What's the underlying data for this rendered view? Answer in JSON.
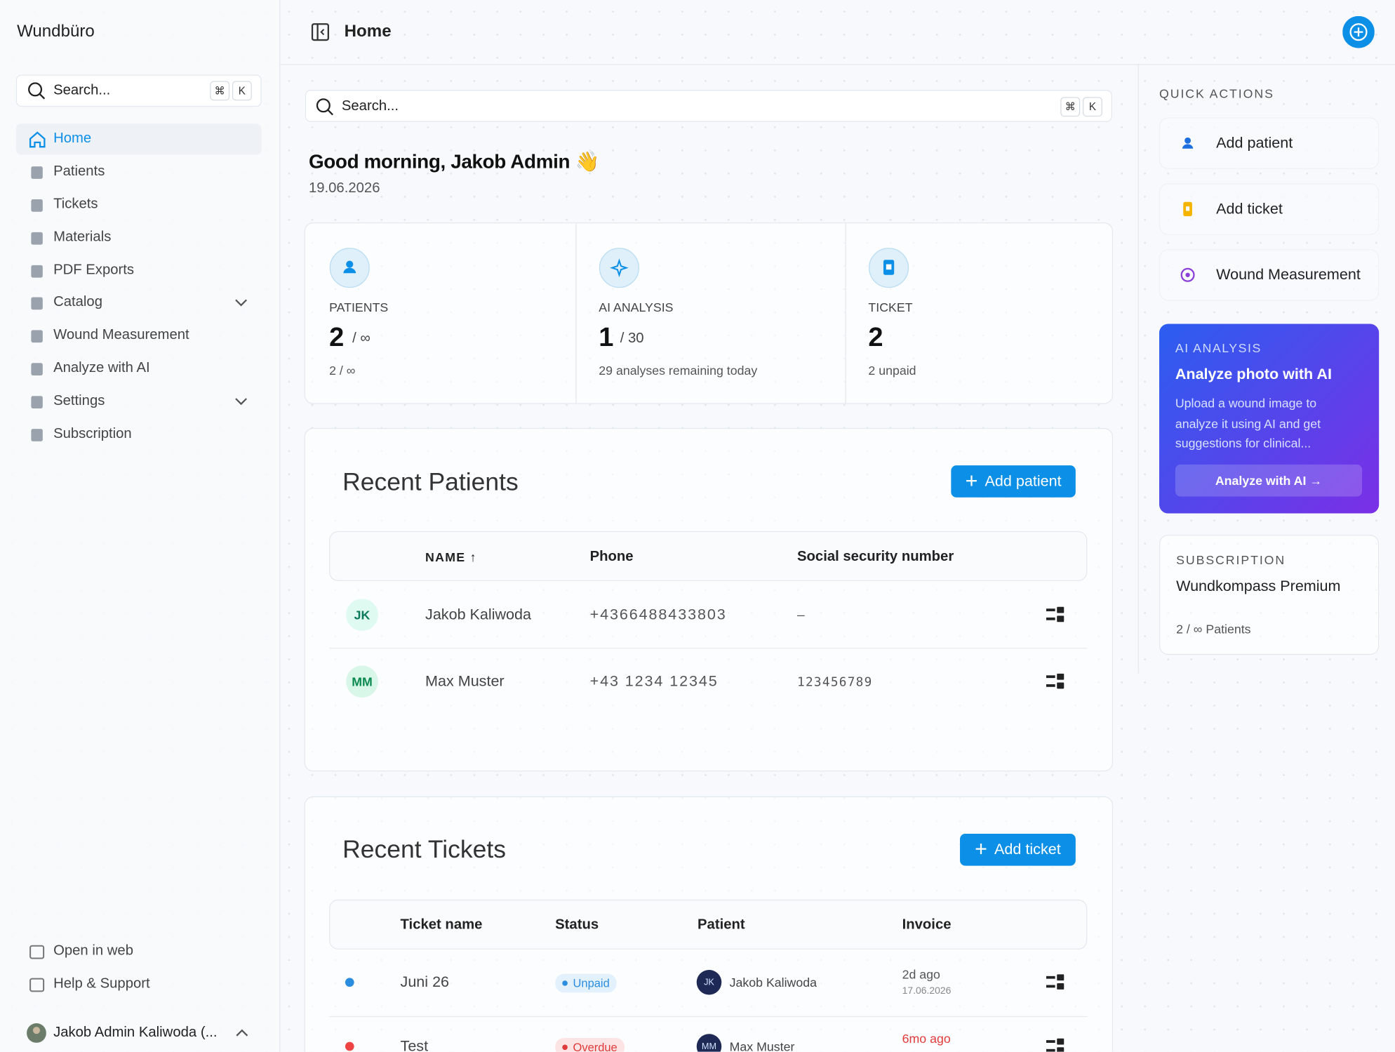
{
  "sidebar": {
    "brand": "Wundbüro",
    "search": "Search...",
    "shortcut": [
      "⌘",
      "K"
    ],
    "nav": [
      "Home",
      "Patients",
      "Tickets",
      "Materials",
      "PDF Exports",
      "Catalog",
      "Wound Measurement",
      "Analyze with AI",
      "Settings",
      "Subscription"
    ],
    "footer_links": [
      "Open in web",
      "Help & Support"
    ],
    "user": "Jakob Admin Kaliwoda (..."
  },
  "header": {
    "title": "Home"
  },
  "main": {
    "search": "Search...",
    "shortcut": [
      "⌘",
      "K"
    ],
    "greeting": "Good morning, Jakob Admin 👋",
    "date": "19.06.2026",
    "stats": [
      {
        "label": "PATIENTS",
        "value": "2",
        "limit": "/ ∞",
        "note": "2 / ∞"
      },
      {
        "label": "AI ANALYSIS",
        "value": "1",
        "limit": "/ 30",
        "note": "29 analyses remaining today"
      },
      {
        "label": "TICKET",
        "value": "2",
        "note": "2 unpaid"
      }
    ],
    "recent_patients": {
      "title": "Recent Patients",
      "button": "Add patient",
      "columns": [
        "NAME ↑",
        "Phone",
        "Social security number"
      ],
      "rows": [
        {
          "initials": "JK",
          "name": "Jakob Kaliwoda",
          "phone": "+4366488433803",
          "ssn": "—"
        },
        {
          "initials": "MM",
          "name": "Max Muster",
          "phone": "+43 1234 12345",
          "ssn": "123456789"
        }
      ]
    },
    "recent_tickets": {
      "title": "Recent Tickets",
      "button": "Add ticket",
      "columns": [
        "Ticket name",
        "Status",
        "Patient",
        "Invoice"
      ],
      "rows": [
        {
          "name": "Juni 26",
          "status": "Unpaid",
          "patient_initials": "JK",
          "patient": "Jakob Kaliwoda",
          "invoice": "2d ago",
          "invoice_date": "17.06.2026"
        },
        {
          "name": "Test",
          "status": "Overdue",
          "patient_initials": "MM",
          "patient": "Max Muster",
          "invoice": "6mo ago"
        }
      ]
    }
  },
  "right_panel": {
    "quick_actions_title": "QUICK ACTIONS",
    "quick_actions": [
      "Add patient",
      "Add ticket",
      "Wound Measurement"
    ],
    "ai_card": {
      "label": "AI ANALYSIS",
      "title": "Analyze photo with AI",
      "text": "Upload a wound image to analyze it using AI and get suggestions for clinical...",
      "button": "Analyze with AI →"
    },
    "subscription": {
      "label": "SUBSCRIPTION",
      "plan": "Wundkompass Premium",
      "usage": "2 / ∞ Patients"
    }
  }
}
